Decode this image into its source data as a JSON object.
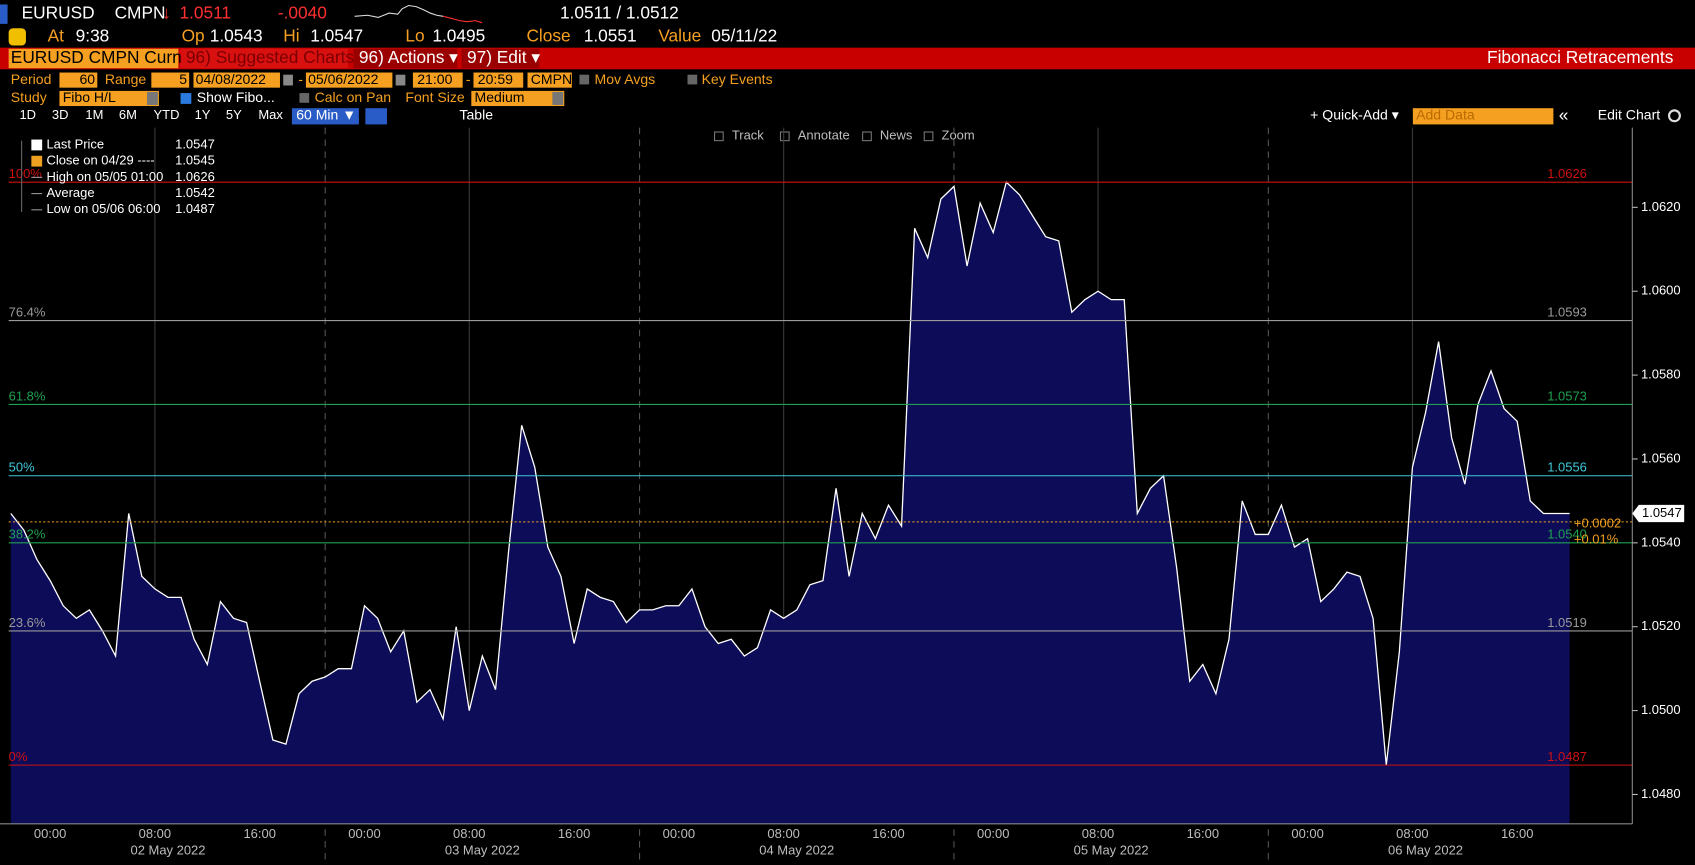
{
  "header": {
    "ticker": "EURUSD",
    "source": "CMPN",
    "arrow": "↓",
    "last": "1.0511",
    "change": "-.0040",
    "bid_ask": "1.0511 / 1.0512",
    "at_label": "At",
    "at": "9:38",
    "open_label": "Op",
    "open": "1.0543",
    "high_label": "Hi",
    "high": "1.0547",
    "low_label": "Lo",
    "low": "1.0495",
    "close_label": "Close",
    "close": "1.0551",
    "value_label": "Value",
    "value": "05/11/22"
  },
  "menu": {
    "security": "EURUSD CMPN Curnc",
    "suggested": "96) Suggested Charts",
    "actions": "96) Actions ▾",
    "edit": "97) Edit ▾",
    "title": "Fibonacci Retracements"
  },
  "settings": {
    "period_label": "Period",
    "period": "60",
    "range_label": "Range",
    "range": "5",
    "start": "04/08/2022",
    "dash": "-",
    "end": "05/06/2022",
    "from_time": "21:00",
    "to_time": "20:59",
    "pricing": "CMPN",
    "mov_avgs": "Mov Avgs",
    "key_events": "Key Events",
    "study_label": "Study",
    "study": "Fibo H/L",
    "show_fibo": "Show Fibo...",
    "calc_on_pan": "Calc on Pan",
    "font_size_label": "Font Size",
    "font_size": "Medium"
  },
  "toolbar": {
    "ranges": [
      "1D",
      "3D",
      "1M",
      "6M",
      "YTD",
      "1Y",
      "5Y",
      "Max"
    ],
    "interval": "60 Min ▼",
    "table": "Table",
    "quick_add": "+ Quick-Add ▾",
    "add_data": "Add Data",
    "collapse": "«",
    "edit_chart": "Edit Chart",
    "tools": [
      "Track",
      "Annotate",
      "News",
      "Zoom"
    ]
  },
  "chart_data": {
    "type": "area",
    "series": [
      {
        "name": "Last Price",
        "color": "#ffffff",
        "fill": "#0c0c58",
        "values": [
          1.0547,
          1.0543,
          1.0536,
          1.0531,
          1.0525,
          1.0522,
          1.0524,
          1.0519,
          1.0513,
          1.0547,
          1.0532,
          1.0529,
          1.0527,
          1.0527,
          1.0517,
          1.0511,
          1.0526,
          1.0522,
          1.0521,
          1.0507,
          1.0493,
          1.0492,
          1.0504,
          1.0507,
          1.0508,
          1.051,
          1.051,
          1.0525,
          1.0522,
          1.0514,
          1.0519,
          1.0502,
          1.0505,
          1.0498,
          1.052,
          1.05,
          1.0513,
          1.0505,
          1.0538,
          1.0568,
          1.0558,
          1.0539,
          1.0532,
          1.0516,
          1.0529,
          1.0527,
          1.0526,
          1.0521,
          1.0524,
          1.0524,
          1.0525,
          1.0525,
          1.0529,
          1.052,
          1.0516,
          1.0517,
          1.0513,
          1.0515,
          1.0524,
          1.0522,
          1.0524,
          1.053,
          1.0531,
          1.0553,
          1.0532,
          1.0547,
          1.0541,
          1.0549,
          1.0544,
          1.0615,
          1.0608,
          1.0622,
          1.0625,
          1.0606,
          1.0621,
          1.0614,
          1.0626,
          1.0623,
          1.0618,
          1.0613,
          1.0612,
          1.0595,
          1.0598,
          1.06,
          1.0598,
          1.0598,
          1.0547,
          1.0553,
          1.0556,
          1.0534,
          1.0507,
          1.0511,
          1.0504,
          1.0517,
          1.055,
          1.0542,
          1.0542,
          1.0549,
          1.0539,
          1.0541,
          1.0526,
          1.0529,
          1.0533,
          1.0532,
          1.0522,
          1.0487,
          1.0514,
          1.0558,
          1.0571,
          1.0588,
          1.0565,
          1.0554,
          1.0573,
          1.0581,
          1.0572,
          1.0569,
          1.055,
          1.0547,
          1.0547,
          1.0547
        ]
      }
    ],
    "xlim": [
      0,
      119
    ],
    "ylim": [
      1.0473,
      1.0639
    ],
    "yticks": [
      {
        "value": 1.048,
        "label": "1.0480"
      },
      {
        "value": 1.05,
        "label": "1.0500"
      },
      {
        "value": 1.052,
        "label": "1.0520"
      },
      {
        "value": 1.054,
        "label": "1.0540"
      },
      {
        "value": 1.056,
        "label": "1.0560"
      },
      {
        "value": 1.058,
        "label": "1.0580"
      },
      {
        "value": 1.06,
        "label": "1.0600"
      },
      {
        "value": 1.062,
        "label": "1.0620"
      }
    ],
    "xticks": [
      {
        "value": 3,
        "label": "00:00"
      },
      {
        "value": 11,
        "label": "08:00"
      },
      {
        "value": 19,
        "label": "16:00"
      },
      {
        "value": 27,
        "label": "00:00"
      },
      {
        "value": 35,
        "label": "08:00"
      },
      {
        "value": 43,
        "label": "16:00"
      },
      {
        "value": 51,
        "label": "00:00"
      },
      {
        "value": 59,
        "label": "08:00"
      },
      {
        "value": 67,
        "label": "16:00"
      },
      {
        "value": 75,
        "label": "00:00"
      },
      {
        "value": 83,
        "label": "08:00"
      },
      {
        "value": 91,
        "label": "16:00"
      },
      {
        "value": 99,
        "label": "00:00"
      },
      {
        "value": 107,
        "label": "08:00"
      },
      {
        "value": 115,
        "label": "16:00"
      }
    ],
    "date_labels": [
      {
        "value": 12,
        "label": "02 May 2022"
      },
      {
        "value": 36,
        "label": "03 May 2022"
      },
      {
        "value": 60,
        "label": "04 May 2022"
      },
      {
        "value": 84,
        "label": "05 May 2022"
      },
      {
        "value": 108,
        "label": "06 May 2022"
      }
    ],
    "fib_levels": [
      {
        "pct": "100%",
        "value": 1.0626,
        "value_label": "1.0626",
        "color": "#d01010"
      },
      {
        "pct": "76.4%",
        "value": 1.0593,
        "value_label": "1.0593",
        "color": "#9a9a9a"
      },
      {
        "pct": "61.8%",
        "value": 1.0573,
        "value_label": "1.0573",
        "color": "#1fa050"
      },
      {
        "pct": "50%",
        "value": 1.0556,
        "value_label": "1.0556",
        "color": "#40c8d8"
      },
      {
        "pct": "38.2%",
        "value": 1.054,
        "value_label": "1.0540",
        "color": "#1fa050"
      },
      {
        "pct": "23.6%",
        "value": 1.0519,
        "value_label": "1.0519",
        "color": "#9a9a9a"
      },
      {
        "pct": "0%",
        "value": 1.0487,
        "value_label": "1.0487",
        "color": "#d01010"
      }
    ],
    "last_price": 1.0547,
    "prior_close": 1.0545,
    "prior_close_color": "#f0a020",
    "change_labels": [
      "+0.0002",
      "+0.01%"
    ],
    "legend": [
      {
        "label": "Close on 04/29 ----",
        "value": 1.0545,
        "color": "#f0a020"
      },
      {
        "label": "High on 05/05 01:00",
        "value": 1.0626
      },
      {
        "label": "Average",
        "value": 1.0542
      },
      {
        "label": "Low on 05/06 06:00",
        "value": 1.0487
      }
    ]
  }
}
